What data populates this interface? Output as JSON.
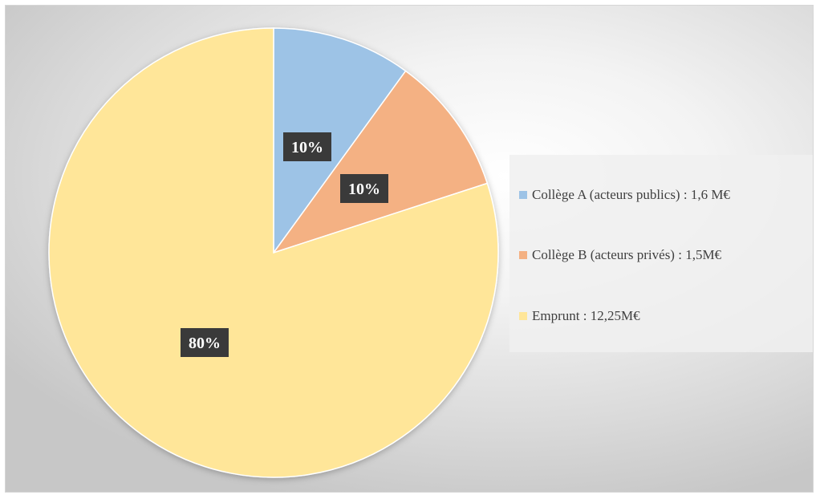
{
  "chart_data": {
    "type": "pie",
    "slices": [
      {
        "name": "Collège A (acteurs publics) : 1,6 M€",
        "value": 10,
        "label": "10%",
        "color": "#9dc3e6"
      },
      {
        "name": "Collège B (acteurs privés) : 1,5M€",
        "value": 10,
        "label": "10%",
        "color": "#f4b183"
      },
      {
        "name": "Emprunt : 12,25M€",
        "value": 80,
        "label": "80%",
        "color": "#ffe699"
      }
    ],
    "start_angle": "12 o'clock, clockwise",
    "legend_position": "right",
    "data_label_style": "white text on dark box"
  }
}
